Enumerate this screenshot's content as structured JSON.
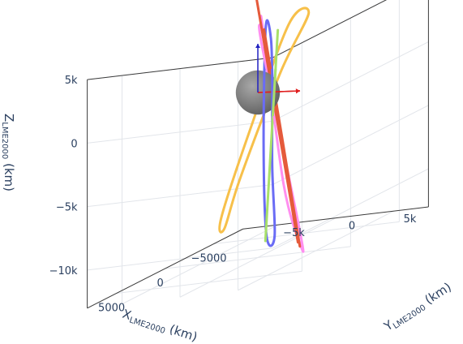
{
  "chart_data": {
    "type": "scatter3d",
    "title": "",
    "axes": {
      "x": {
        "label_main": "X",
        "label_sub": "LME2000",
        "label_unit": " (km)",
        "range": [
          -8000,
          8000
        ],
        "ticks": [
          -5000,
          0,
          5000
        ],
        "tick_labels": [
          "−5000",
          "0",
          "5000"
        ]
      },
      "y": {
        "label_main": "Y",
        "label_sub": "LME2000",
        "label_unit": " (km)",
        "range": [
          -8000,
          8000
        ],
        "ticks": [
          -5000,
          0,
          5000
        ],
        "tick_labels": [
          "−5k",
          "0",
          "5k"
        ]
      },
      "z": {
        "label_main": "Z",
        "label_sub": "LME2000",
        "label_unit": " (km)",
        "range": [
          -13000,
          5000
        ],
        "ticks": [
          5000,
          0,
          -5000,
          -10000
        ],
        "tick_labels": [
          "5k",
          "0",
          "−5k",
          "−10k"
        ]
      }
    },
    "grid": true,
    "legend": "none",
    "body": {
      "type": "sphere",
      "radius": 1737,
      "color": "#7a7a7a"
    },
    "frame_arrows": [
      {
        "axis": "x",
        "color": "#e02020"
      },
      {
        "axis": "y",
        "color": "#e02020"
      },
      {
        "axis": "z",
        "color": "#2020c0"
      }
    ],
    "series": [
      {
        "color": "#f7c04a",
        "points": [
          [
            -4500,
            600,
            4400
          ],
          [
            1500,
            3200,
            1800
          ],
          [
            3600,
            1500,
            -5500
          ],
          [
            2000,
            -1200,
            -9800
          ],
          [
            -1600,
            -4500,
            -10000
          ],
          [
            -6500,
            -6200,
            -5000
          ],
          [
            -7000,
            -3200,
            3000
          ]
        ]
      },
      {
        "color": "#6a6cf5",
        "points": [
          [
            -1400,
            -500,
            4600
          ],
          [
            -150,
            1000,
            4100
          ],
          [
            300,
            1500,
            300
          ],
          [
            -400,
            900,
            -6000
          ],
          [
            -2200,
            -400,
            -12100
          ],
          [
            -2800,
            -1600,
            -12200
          ],
          [
            -2500,
            -1600,
            -5000
          ]
        ]
      },
      {
        "color": "#a8e06a",
        "points": [
          [
            -1100,
            800,
            4400
          ],
          [
            -2800,
            -1700,
            -12600
          ]
        ]
      },
      {
        "color": "#ff8ff0",
        "points": [
          [
            -1350,
            -700,
            4600
          ],
          [
            700,
            2800,
            -7200
          ],
          [
            1450,
            4900,
            -12000
          ],
          [
            1000,
            4400,
            -10700
          ],
          [
            -950,
            -450,
            3400
          ],
          [
            -1600,
            -1000,
            4600
          ]
        ]
      },
      {
        "color": "#e55a3b",
        "points": [
          [
            -1550,
            -1000,
            4700
          ],
          [
            1400,
            4800,
            -12100
          ],
          [
            -1350,
            -600,
            4500
          ],
          [
            1250,
            4500,
            -11800
          ],
          [
            -1550,
            -1000,
            4700
          ]
        ]
      }
    ]
  }
}
